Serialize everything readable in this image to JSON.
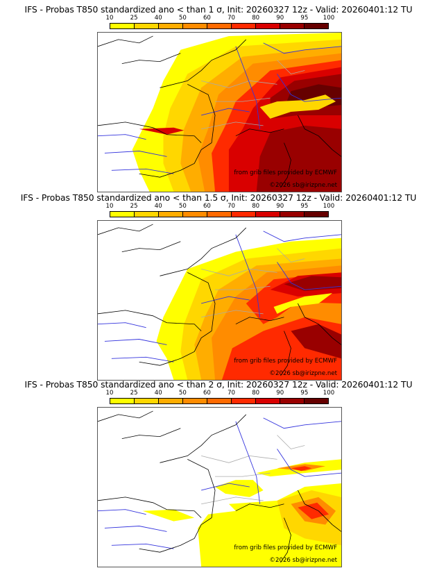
{
  "colorbar": {
    "ticks": [
      "10",
      "25",
      "40",
      "50",
      "60",
      "70",
      "80",
      "90",
      "95",
      "100"
    ],
    "colors": [
      "#ffff00",
      "#ffd700",
      "#ffad00",
      "#ff8c00",
      "#ff6a00",
      "#ff2a00",
      "#d90000",
      "#990000",
      "#660000"
    ]
  },
  "panels": [
    {
      "title": "IFS - Probas T850  standardized ano < than 1 σ, Init: 20260327 12z - Valid: 20260401:12 TU",
      "credit_source": "from grib files provided by ECMWF",
      "credit_copyright": "©2026 sb@irizpne.net",
      "intensity": "high"
    },
    {
      "title": "IFS - Probas T850  standardized ano < than 1.5 σ, Init: 20260327 12z - Valid: 20260401:12 TU",
      "credit_source": "from grib files provided by ECMWF",
      "credit_copyright": "©2026 sb@irizpne.net",
      "intensity": "medium"
    },
    {
      "title": "IFS - Probas T850  standardized ano < than 2 σ, Init: 20260327 12z - Valid: 20260401:12 TU",
      "credit_source": "from grib files provided by ECMWF",
      "credit_copyright": "©2026 sb@irizpne.net",
      "intensity": "low"
    }
  ]
}
